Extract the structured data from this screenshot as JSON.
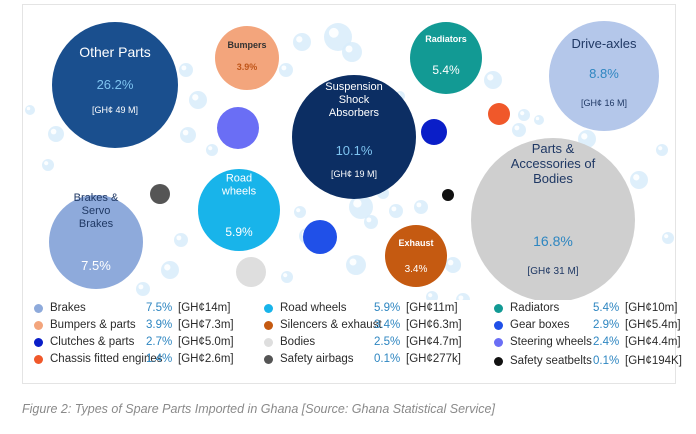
{
  "chart_data": {
    "type": "bubble",
    "title": "",
    "bubbles": [
      {
        "label": "Other Parts",
        "percent": "26.2%",
        "value": "[GH¢ 49 M]",
        "color": "#1a4f8e",
        "label_color": "#ffffff",
        "pct_color": "#7ec3f0",
        "val_color": "#ffffff"
      },
      {
        "label": "Bumpers",
        "percent": "3.9%",
        "value": "",
        "color": "#f3a57c",
        "label_color": "#333333",
        "pct_color": "#c0561a",
        "val_color": "#333333"
      },
      {
        "label": "Radiators",
        "percent": "5.4%",
        "value": "",
        "color": "#129a94",
        "label_color": "#ffffff",
        "pct_color": "#ffffff",
        "val_color": "#ffffff"
      },
      {
        "label": "Drive-axles",
        "percent": "8.8%",
        "value": "[GH¢ 16 M]",
        "color": "#b4c7ea",
        "label_color": "#1f3864",
        "pct_color": "#2e86c1",
        "val_color": "#1f3864"
      },
      {
        "label": "Suspension Shock Absorbers",
        "percent": "10.1%",
        "value": "[GH¢ 19 M]",
        "color": "#0c2e63",
        "label_color": "#ffffff",
        "pct_color": "#7ec3f0",
        "val_color": "#ffffff"
      },
      {
        "label": "Parts & Accessories of Bodies",
        "percent": "16.8%",
        "value": "[GH¢ 31 M]",
        "color": "#cfcfcf",
        "label_color": "#1f3864",
        "pct_color": "#2e86c1",
        "val_color": "#1f3864"
      },
      {
        "label": "Road wheels",
        "percent": "5.9%",
        "value": "",
        "color": "#18b4ea",
        "label_color": "#ffffff",
        "pct_color": "#ffffff",
        "val_color": "#ffffff"
      },
      {
        "label": "Brakes & Servo Brakes",
        "percent": "7.5%",
        "value": "",
        "color": "#8eaadb",
        "label_color": "#1f3864",
        "pct_color": "#ffffff",
        "val_color": "#1f3864"
      },
      {
        "label": "Exhaust",
        "percent": "3.4%",
        "value": "",
        "color": "#c55a11",
        "label_color": "#ffffff",
        "pct_color": "#ffffff",
        "val_color": "#ffffff"
      },
      {
        "label": "Steering wheels",
        "percent": "",
        "value": "",
        "color": "#6a6ef5",
        "label_color": "#ffffff",
        "pct_color": "#ffffff",
        "val_color": "#ffffff"
      },
      {
        "label": "Gear boxes",
        "percent": "",
        "value": "",
        "color": "#2050e8",
        "label_color": "#ffffff",
        "pct_color": "#ffffff",
        "val_color": "#ffffff"
      },
      {
        "label": "Clutches & parts",
        "percent": "",
        "value": "",
        "color": "#0a1ec8",
        "label_color": "#ffffff",
        "pct_color": "#ffffff",
        "val_color": "#ffffff"
      },
      {
        "label": "Chassis fitted engines",
        "percent": "",
        "value": "",
        "color": "#f0582a",
        "label_color": "#ffffff",
        "pct_color": "#ffffff",
        "val_color": "#ffffff"
      },
      {
        "label": "Safety airbags",
        "percent": "",
        "value": "",
        "color": "#555555",
        "label_color": "#ffffff",
        "pct_color": "#ffffff",
        "val_color": "#ffffff"
      },
      {
        "label": "Safety seatbelts",
        "percent": "",
        "value": "",
        "color": "#111111",
        "label_color": "#ffffff",
        "pct_color": "#ffffff",
        "val_color": "#ffffff"
      },
      {
        "label": "Bodies",
        "percent": "",
        "value": "",
        "color": "#dedede",
        "label_color": "#333333",
        "pct_color": "#333333",
        "val_color": "#333333"
      }
    ],
    "legend": [
      {
        "label": "Brakes",
        "percent": "7.5%",
        "value": "[GH¢14m]",
        "color": "#8eaadb"
      },
      {
        "label": "Bumpers & parts",
        "percent": "3.9%",
        "value": "[GH¢7.3m]",
        "color": "#f3a57c"
      },
      {
        "label": "Clutches & parts",
        "percent": "2.7%",
        "value": "[GH¢5.0m]",
        "color": "#0a1ec8"
      },
      {
        "label": "Chassis fitted engines",
        "percent": "1.4%",
        "value": "[GH¢2.6m]",
        "color": "#f0582a"
      },
      {
        "label": "Road wheels",
        "percent": "5.9%",
        "value": "[GH¢11m]",
        "color": "#18b4ea"
      },
      {
        "label": "Silencers & exhaust",
        "percent": "3.4%",
        "value": "[GH¢6.3m]",
        "color": "#c55a11"
      },
      {
        "label": "Bodies",
        "percent": "2.5%",
        "value": "[GH¢4.7m]",
        "color": "#dedede"
      },
      {
        "label": "Safety airbags",
        "percent": "0.1%",
        "value": "[GH¢277k]",
        "color": "#555555"
      },
      {
        "label": "Radiators",
        "percent": "5.4%",
        "value": "[GH¢10m]",
        "color": "#129a94"
      },
      {
        "label": "Gear boxes",
        "percent": "2.9%",
        "value": "[GH¢5.4m]",
        "color": "#2050e8"
      },
      {
        "label": "Steering wheels",
        "percent": "2.4%",
        "value": "[GH¢4.4m]",
        "color": "#6a6ef5"
      },
      {
        "label": "Safety seatbelts",
        "percent": "0.1%",
        "value": "[GH¢194K]",
        "color": "#111111"
      }
    ]
  },
  "caption": "Figure 2: Types of Spare Parts Imported in Ghana [Source: Ghana Statistical Service]"
}
